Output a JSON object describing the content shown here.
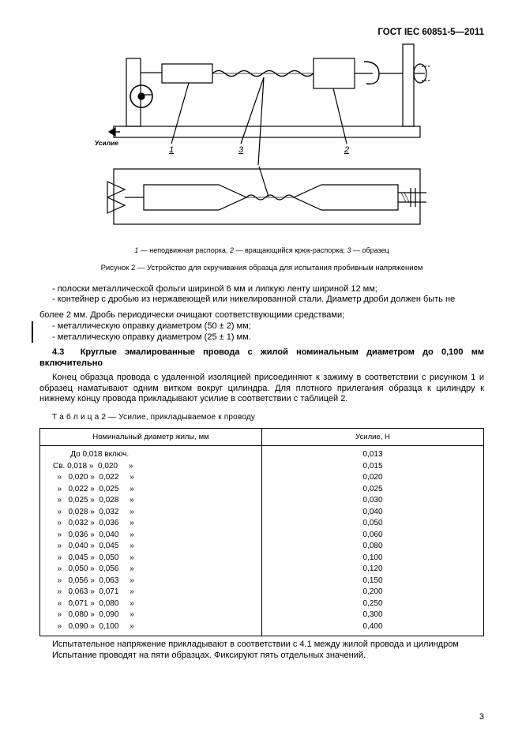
{
  "header": {
    "standard": "ГОСТ  IEC 60851-5—2011"
  },
  "figure": {
    "force_label": "Усилие",
    "callouts": [
      "1",
      "3",
      "2"
    ],
    "legend_items": [
      {
        "num": "1",
        "text": "неподвижная распорка"
      },
      {
        "num": "2",
        "text": "вращающийся крюк-распорка"
      },
      {
        "num": "3",
        "text": "образец"
      }
    ],
    "caption": "Рисунок  2 — Устройство для скручивания образца для испытания пробивным напряжением"
  },
  "stroke_color": "#000000",
  "list1": [
    "-   полоски металлической фольги шириной 6 мм и липкую ленту шириной 12 мм;",
    "-   контейнер с дробью из нержавеющей или никелированной стали. Диаметр дроби должен быть не"
  ],
  "list1_cont": "более 2 мм. Дробь периодически очищают соответствующими средствами;",
  "list2": [
    "-   металлическую оправку диаметром (50 ± 2) мм;",
    "-   металлическую оправку диаметром (25 ± 1) мм."
  ],
  "section": {
    "num": "4.3",
    "title": "Круглые эмалированные провода с жилой номинальным диаметром до 0,100 мм включительно"
  },
  "para1": "Конец образца провода с удаленной изоляцией присоединяют к зажиму в соответствии с рисунком 1 и образец наматывают одним витком вокруг цилиндра. Для плотного прилегания образца к цилиндру к нижнему концу провода прикладывают усилие в соответствии с таблицей 2.",
  "table": {
    "caption": "Т а б л и ц а   2 — Усилие, прикладываемое к проводу",
    "col1_header": "Номинальный диаметр жилы, мм",
    "col2_header": "Усилие, Н",
    "rows": [
      {
        "range": "        До 0,018 включ.",
        "force": "0,013"
      },
      {
        "range": "Св. 0,018 »  0,020     »",
        "force": "0,015"
      },
      {
        "range": "  »   0,020 »  0,022     »",
        "force": "0,020"
      },
      {
        "range": "  »   0,022 »  0,025     »",
        "force": "0,025"
      },
      {
        "range": "  »   0,025 »  0,028     »",
        "force": "0,030"
      },
      {
        "range": "  »   0,028 »  0,032     »",
        "force": "0,040"
      },
      {
        "range": "  »   0,032 »  0,036     »",
        "force": "0,050"
      },
      {
        "range": "  »   0,036 »  0,040     »",
        "force": "0,060"
      },
      {
        "range": "  »   0,040 »  0,045     »",
        "force": "0,080"
      },
      {
        "range": "  »   0,045 »  0,050     »",
        "force": "0,100"
      },
      {
        "range": "  »   0,050 »  0,056     »",
        "force": "0,120"
      },
      {
        "range": "  »   0,056 »  0,063     »",
        "force": "0,150"
      },
      {
        "range": "  »   0,063 »  0,071     »",
        "force": "0,200"
      },
      {
        "range": "  »   0,071 »  0,080     »",
        "force": "0,250"
      },
      {
        "range": "  »   0,080 »  0,090     »",
        "force": "0,300"
      },
      {
        "range": "  »   0,090 »  0,100     »",
        "force": "0,400"
      }
    ]
  },
  "para2": "Испытательное напряжение прикладывают в соответствии с 4.1 между жилой провода и цилиндром",
  "para3": "Испытание проводят на пяти образцах. Фиксируют пять отдельных значений.",
  "page_number": "3"
}
